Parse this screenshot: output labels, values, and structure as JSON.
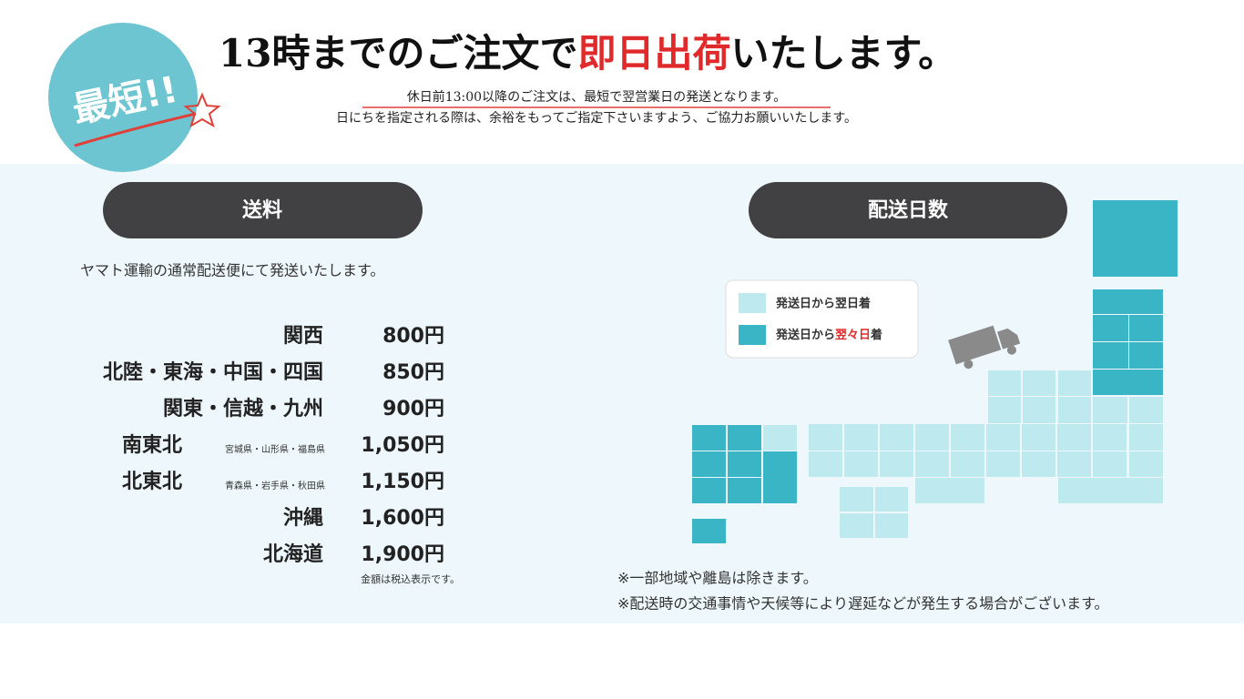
{
  "badge": "最短!!",
  "headline": {
    "before": "13時までのご注文で",
    "highlight": "即日出荷",
    "after": "いたします。"
  },
  "notes": [
    "休日前13:00以降のご注文は、最短で翌営業日の発送となります。",
    "日にちを指定される際は、余裕をもってご指定下さいますよう、ご協力お願いいたします。"
  ],
  "shipping": {
    "heading": "送料",
    "intro": "ヤマト運輸の通常配送便にて発送いたします。",
    "rows": [
      {
        "region": "関西",
        "price": "800円"
      },
      {
        "region": "北陸・東海・中国・四国",
        "price": "850円"
      },
      {
        "region": "関東・信越・九州",
        "price": "900円"
      },
      {
        "region": "南東北",
        "detail": "宮城県・山形県・福島県",
        "price": "1,050円"
      },
      {
        "region": "北東北",
        "detail": "青森県・岩手県・秋田県",
        "price": "1,150円"
      },
      {
        "region": "沖縄",
        "price": "1,600円"
      },
      {
        "region": "北海道",
        "price": "1,900円"
      }
    ],
    "footnote": "金額は税込表示です。"
  },
  "delivery": {
    "heading": "配送日数",
    "legend": [
      {
        "text": "発送日から翌日着"
      },
      {
        "before": "発送日から",
        "highlight": "翌々日",
        "after": "着"
      }
    ],
    "notes": [
      "※一部地域や離島は除きます。",
      "※配送時の交通事情や天候等により遅延などが発生する場合がございます。"
    ]
  }
}
